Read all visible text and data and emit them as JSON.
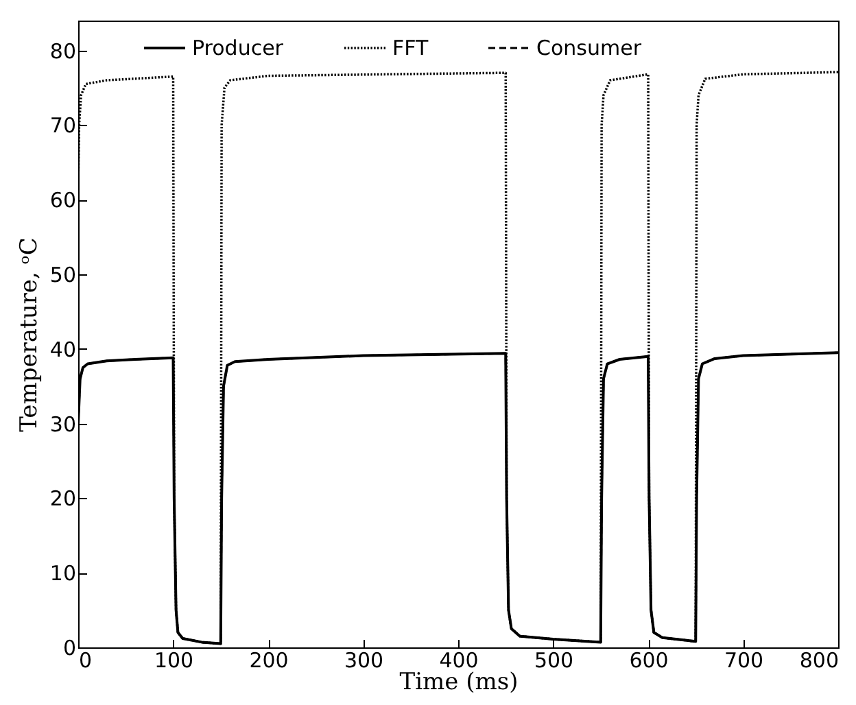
{
  "chart_data": {
    "type": "line",
    "xlabel": "Time (ms)",
    "ylabel": "Temperature, ᵒC",
    "xlim": [
      0,
      800
    ],
    "xticks": [
      0,
      100,
      200,
      300,
      400,
      500,
      600,
      700,
      800
    ],
    "ylim": [
      0,
      84
    ],
    "yticks": [
      0,
      10,
      20,
      30,
      40,
      50,
      60,
      70,
      80
    ],
    "grid": false,
    "legend": "top",
    "marker": "none",
    "series": [
      {
        "name": "Producer",
        "color": "#000000",
        "line_style": "solid",
        "x": [
          0,
          2,
          5,
          10,
          30,
          60,
          100,
          101,
          103,
          105,
          110,
          130,
          150,
          151,
          153,
          157,
          165,
          200,
          300,
          450,
          451,
          453,
          456,
          465,
          500,
          550,
          551,
          553,
          557,
          570,
          600,
          601,
          603,
          606,
          615,
          650,
          651,
          653,
          657,
          670,
          700,
          800
        ],
        "values": [
          30,
          36,
          37.5,
          38,
          38.4,
          38.6,
          38.8,
          20,
          5,
          2,
          1.2,
          0.7,
          0.5,
          20,
          35,
          37.8,
          38.3,
          38.6,
          39.1,
          39.4,
          20,
          5,
          2.5,
          1.5,
          1.1,
          0.7,
          20,
          36,
          38,
          38.6,
          39,
          20,
          5,
          2,
          1.3,
          0.8,
          20,
          36,
          38,
          38.7,
          39.1,
          39.5
        ]
      },
      {
        "name": "FFT",
        "color": "#000000",
        "line_style": "dotted",
        "x": [
          0,
          1,
          3,
          8,
          30,
          100,
          101,
          103,
          105,
          110,
          130,
          150,
          151,
          154,
          160,
          200,
          450,
          451,
          453,
          456,
          465,
          500,
          550,
          551,
          553,
          560,
          600,
          601,
          603,
          606,
          615,
          650,
          651,
          653,
          660,
          700,
          800
        ],
        "values": [
          62,
          70,
          74,
          75.5,
          76,
          76.5,
          20,
          5,
          2,
          1.2,
          0.7,
          0.5,
          70,
          75,
          76,
          76.6,
          77,
          20,
          5,
          2.5,
          1.5,
          1.1,
          0.7,
          70,
          74,
          76,
          76.8,
          20,
          5,
          2,
          1.3,
          0.8,
          70,
          74,
          76.2,
          76.8,
          77.1
        ]
      },
      {
        "name": "Consumer",
        "color": "#000000",
        "line_style": "dashed",
        "x": [
          0,
          2,
          5,
          10,
          30,
          60,
          100,
          101,
          103,
          105,
          110,
          130,
          150,
          151,
          153,
          157,
          165,
          200,
          300,
          450,
          451,
          453,
          456,
          465,
          500,
          550,
          551,
          553,
          557,
          570,
          600,
          601,
          603,
          606,
          615,
          650,
          651,
          653,
          657,
          670,
          700,
          800
        ],
        "values": [
          30,
          36,
          37.5,
          38,
          38.4,
          38.6,
          38.8,
          20,
          5,
          2,
          1.2,
          0.7,
          0.5,
          20,
          35,
          37.8,
          38.3,
          38.6,
          39.1,
          39.4,
          20,
          5,
          2.5,
          1.5,
          1.1,
          0.7,
          20,
          36,
          38,
          38.6,
          39,
          20,
          5,
          2,
          1.3,
          0.8,
          20,
          36,
          38,
          38.7,
          39.1,
          39.5
        ]
      }
    ]
  }
}
